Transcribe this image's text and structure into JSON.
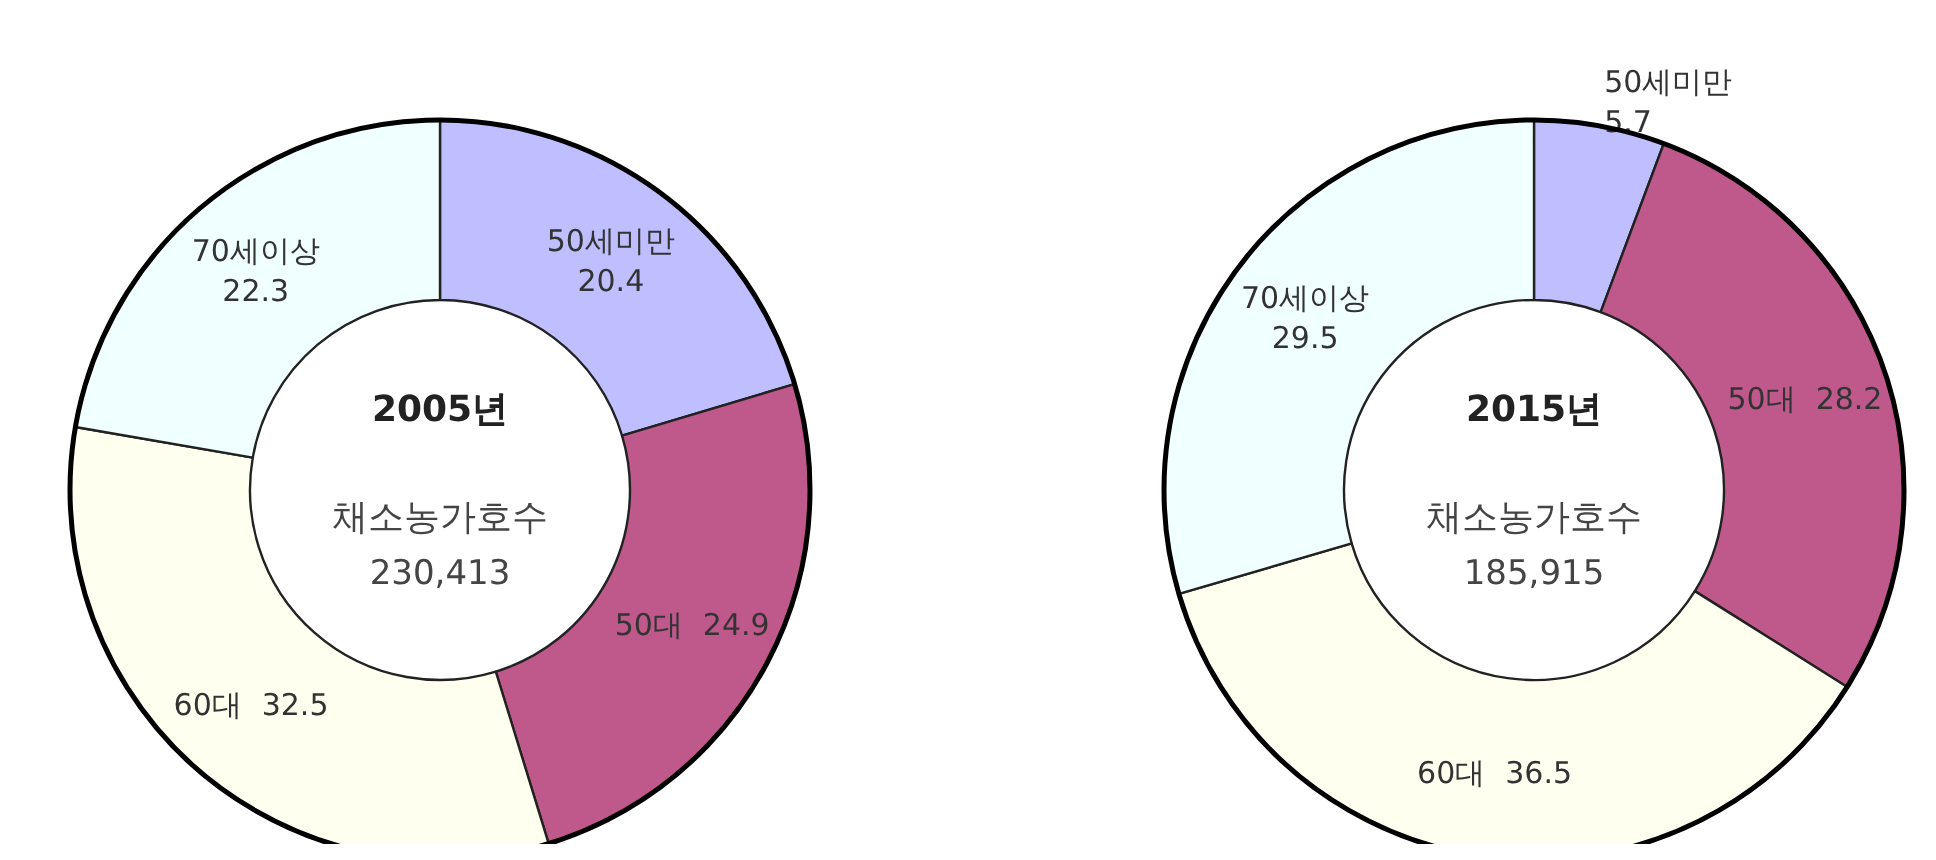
{
  "chart_data": [
    {
      "type": "donut",
      "title": "2005년",
      "subtitle": "채소농가호수",
      "annotations": [
        "230,413"
      ],
      "categories": [
        "50세미만",
        "50대",
        "60대",
        "70세이상"
      ],
      "values": [
        20.4,
        24.9,
        32.5,
        22.3
      ],
      "colors": [
        "#bfbfff",
        "#bf598c",
        "#fffff0",
        "#f0ffff"
      ],
      "data_labels": true
    },
    {
      "type": "donut",
      "title": "2015년",
      "subtitle": "채소농가호수",
      "annotations": [
        "185,915"
      ],
      "categories": [
        "50세미만",
        "50대",
        "60대",
        "70세이상"
      ],
      "values": [
        5.7,
        28.2,
        36.5,
        29.5
      ],
      "colors": [
        "#bfbfff",
        "#bf598c",
        "#fffff0",
        "#f0ffff"
      ],
      "data_labels": true
    }
  ]
}
